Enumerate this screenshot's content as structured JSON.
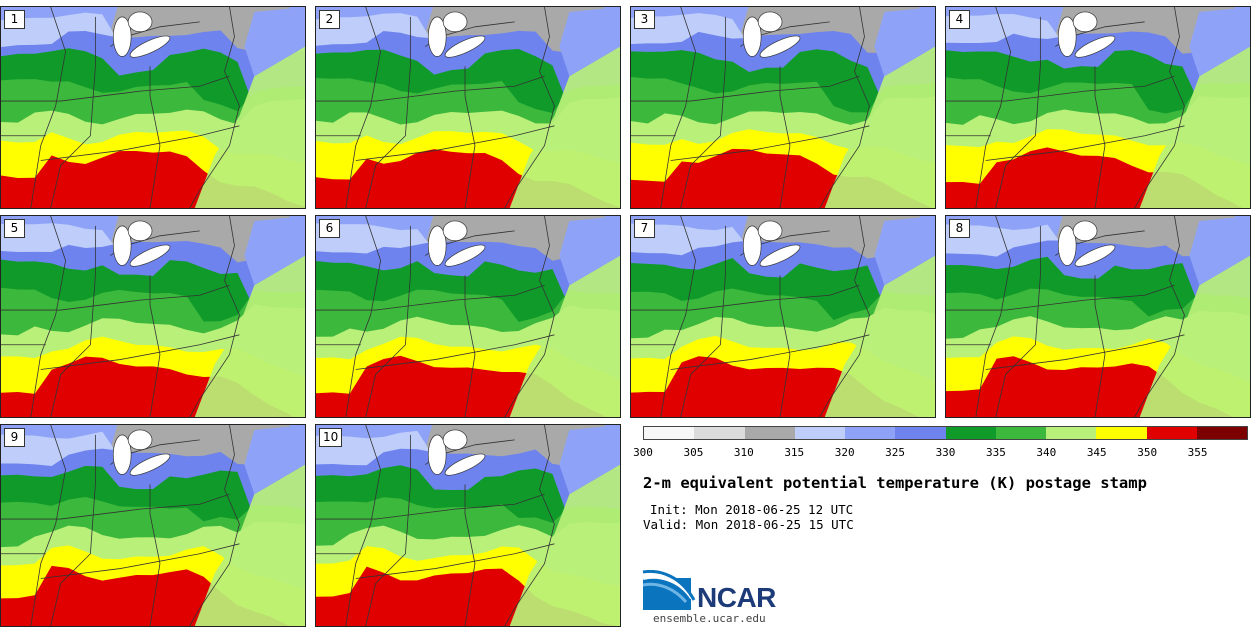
{
  "title": "2-m equivalent potential temperature (K) postage stamp",
  "init_text": "Init: Mon 2018-06-25 12 UTC",
  "valid_text": "Valid: Mon 2018-06-25 15 UTC",
  "logo_text": "NCAR",
  "website": "ensemble.ucar.edu",
  "members": [
    "1",
    "2",
    "3",
    "4",
    "5",
    "6",
    "7",
    "8",
    "9",
    "10"
  ],
  "colorbar": {
    "ticks": [
      "300",
      "305",
      "310",
      "315",
      "320",
      "325",
      "330",
      "335",
      "340",
      "345",
      "350",
      "355"
    ],
    "colors": [
      "#f7f7f7",
      "#dcdcdc",
      "#a9a9a9",
      "#bfcdfa",
      "#8ea3f7",
      "#6e83ee",
      "#0f9a2a",
      "#3cb83c",
      "#b8f07a",
      "#ffff00",
      "#e00000",
      "#7c0000"
    ]
  },
  "field_colors": {
    "gray": "#a9a9a9",
    "light_blue": "#bfcdfa",
    "blue": "#8ea3f7",
    "dark_blue": "#6e83ee",
    "dark_green": "#0f9a2a",
    "green": "#3cb83c",
    "light_green": "#b8f07a",
    "yellow": "#ffff00",
    "red": "#e00000"
  }
}
